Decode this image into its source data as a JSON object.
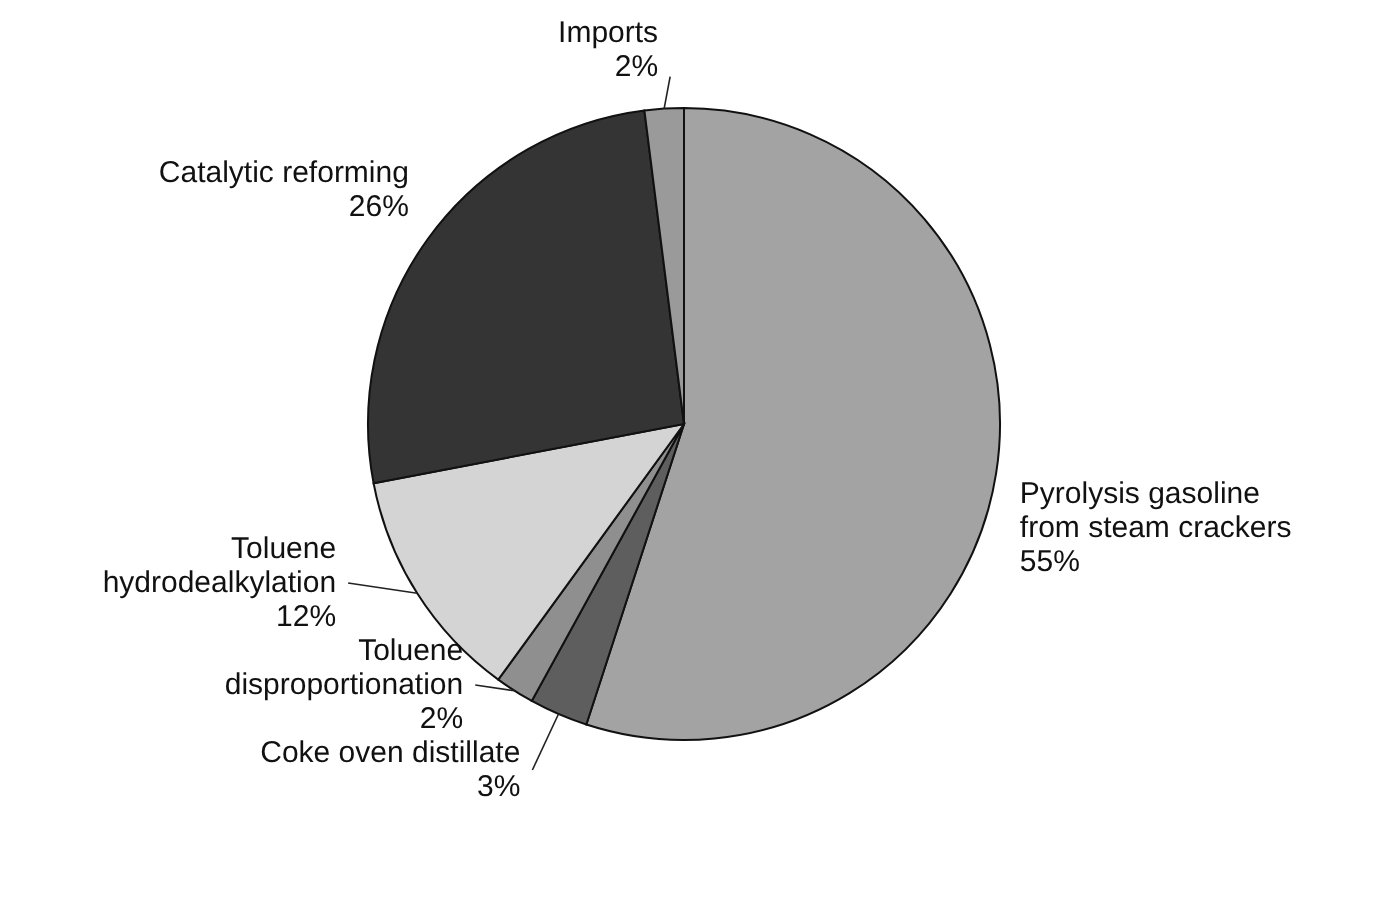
{
  "chart_data": {
    "type": "pie",
    "categories": [
      "Pyrolysis gasoline from steam crackers",
      "Coke oven distillate",
      "Toluene disproportionation",
      "Toluene hydrodealkylation",
      "Catalytic reforming",
      "Imports"
    ],
    "values": [
      55,
      3,
      2,
      12,
      26,
      2
    ],
    "value_labels": [
      "55%",
      "3%",
      "2%",
      "12%",
      "26%",
      "2%"
    ],
    "colors": [
      "#a3a3a3",
      "#5e5e5e",
      "#8f8f8f",
      "#d4d4d4",
      "#343434",
      "#9a9a9a"
    ]
  }
}
